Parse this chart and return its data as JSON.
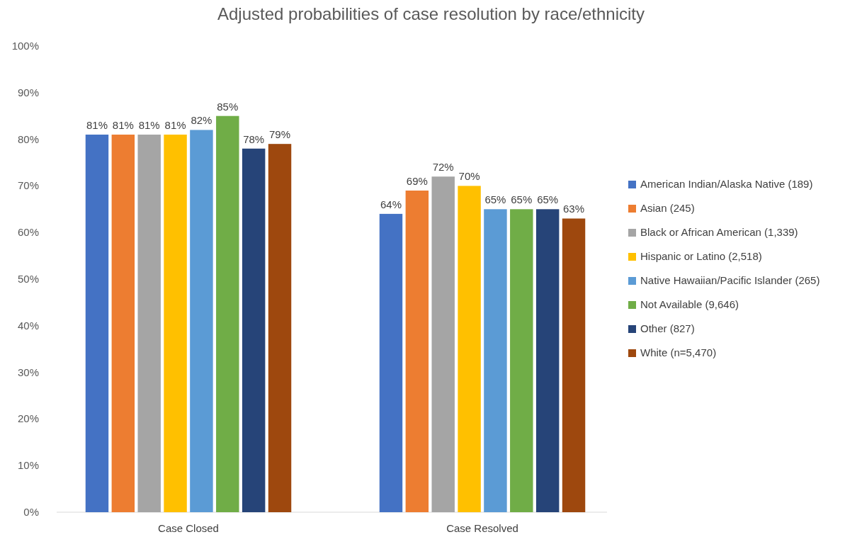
{
  "chart_data": {
    "type": "bar",
    "title": "Adjusted probabilities of case resolution by race/ethnicity",
    "categories": [
      "Case Closed",
      "Case Resolved"
    ],
    "series": [
      {
        "name": "American Indian/Alaska Native (189)",
        "color": "#4472c4",
        "values": [
          81,
          64
        ],
        "value_labels": [
          "81%",
          "64%"
        ]
      },
      {
        "name": "Asian (245)",
        "color": "#ed7d31",
        "values": [
          81,
          69
        ],
        "value_labels": [
          "81%",
          "69%"
        ]
      },
      {
        "name": "Black or African American (1,339)",
        "color": "#a5a5a5",
        "values": [
          81,
          72
        ],
        "value_labels": [
          "81%",
          "72%"
        ]
      },
      {
        "name": "Hispanic or Latino (2,518)",
        "color": "#ffc000",
        "values": [
          81,
          70
        ],
        "value_labels": [
          "81%",
          "70%"
        ]
      },
      {
        "name": "Native Hawaiian/Pacific Islander (265)",
        "color": "#5b9bd5",
        "values": [
          82,
          65
        ],
        "value_labels": [
          "82%",
          "65%"
        ]
      },
      {
        "name": "Not Available (9,646)",
        "color": "#70ad47",
        "values": [
          85,
          65
        ],
        "value_labels": [
          "85%",
          "65%"
        ]
      },
      {
        "name": "Other (827)",
        "color": "#264478",
        "values": [
          78,
          65
        ],
        "value_labels": [
          "78%",
          "65%"
        ]
      },
      {
        "name": "White (n=5,470)",
        "color": "#9e480e",
        "values": [
          79,
          63
        ],
        "value_labels": [
          "79%",
          "63%"
        ]
      }
    ],
    "ylim": [
      0,
      100
    ],
    "yticks": [
      {
        "value": 0,
        "label": "0%"
      },
      {
        "value": 10,
        "label": "10%"
      },
      {
        "value": 20,
        "label": "20%"
      },
      {
        "value": 30,
        "label": "30%"
      },
      {
        "value": 40,
        "label": "40%"
      },
      {
        "value": 50,
        "label": "50%"
      },
      {
        "value": 60,
        "label": "60%"
      },
      {
        "value": 70,
        "label": "70%"
      },
      {
        "value": 80,
        "label": "80%"
      },
      {
        "value": 90,
        "label": "90%"
      },
      {
        "value": 100,
        "label": "100%"
      }
    ],
    "legend": "right"
  }
}
